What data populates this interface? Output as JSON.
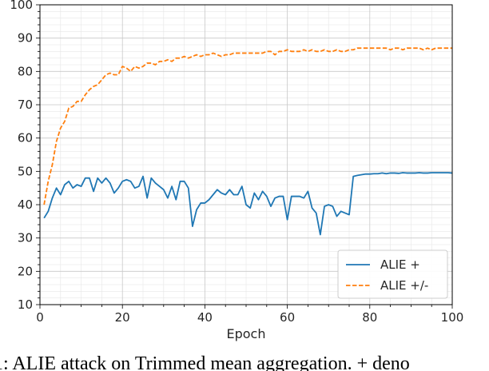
{
  "chart_data": {
    "type": "line",
    "title": "",
    "xlabel": "Epoch",
    "ylabel": "",
    "xlim": [
      0,
      100
    ],
    "ylim": [
      10,
      100
    ],
    "xticks": [
      "0",
      "20",
      "40",
      "60",
      "80",
      "100"
    ],
    "yticks": [
      "10",
      "20",
      "30",
      "40",
      "50",
      "60",
      "70",
      "80",
      "90",
      "100"
    ],
    "grid": "major and minor",
    "legend_position": "lower-right",
    "series": [
      {
        "name": "ALIE +",
        "color": "#1f77b4",
        "style": "solid",
        "x": [
          1,
          2,
          3,
          4,
          5,
          6,
          7,
          8,
          9,
          10,
          11,
          12,
          13,
          14,
          15,
          16,
          17,
          18,
          19,
          20,
          21,
          22,
          23,
          24,
          25,
          26,
          27,
          28,
          29,
          30,
          31,
          32,
          33,
          34,
          35,
          36,
          37,
          38,
          39,
          40,
          41,
          42,
          43,
          44,
          45,
          46,
          47,
          48,
          49,
          50,
          51,
          52,
          53,
          54,
          55,
          56,
          57,
          58,
          59,
          60,
          61,
          62,
          63,
          64,
          65,
          66,
          67,
          68,
          69,
          70,
          71,
          72,
          73,
          74,
          75,
          76,
          77,
          78,
          79,
          80,
          81,
          82,
          83,
          84,
          85,
          86,
          87,
          88,
          89,
          90,
          91,
          92,
          93,
          94,
          95,
          96,
          97,
          98,
          99,
          100
        ],
        "y": [
          36,
          38,
          42,
          45,
          43,
          46,
          47,
          45,
          46,
          45.5,
          48,
          48,
          44,
          48,
          46.5,
          48,
          46.5,
          43.5,
          45,
          47,
          47.5,
          47,
          45,
          45.5,
          48.5,
          42,
          48,
          46.5,
          45.5,
          44.5,
          42,
          45.5,
          41.5,
          47,
          47,
          45,
          33.5,
          38.5,
          40.5,
          40.5,
          41.5,
          43,
          44.5,
          43.5,
          43,
          44.5,
          43,
          43,
          45.5,
          40,
          39,
          43.5,
          41.5,
          44,
          42.5,
          39.5,
          42,
          42.5,
          42.5,
          35.5,
          42.5,
          42.5,
          42.5,
          42,
          44,
          39,
          37.5,
          31,
          39.5,
          40,
          39.5,
          36.5,
          38,
          37.5,
          37,
          48.5,
          48.8,
          49,
          49.2,
          49.2,
          49.3,
          49.3,
          49.5,
          49.3,
          49.5,
          49.5,
          49.4,
          49.6,
          49.5,
          49.5,
          49.5,
          49.6,
          49.5,
          49.5,
          49.6,
          49.6,
          49.6,
          49.6,
          49.6,
          49.5
        ]
      },
      {
        "name": "ALIE +/-",
        "color": "#ff7f0e",
        "style": "dashed",
        "x": [
          1,
          2,
          3,
          4,
          5,
          6,
          7,
          8,
          9,
          10,
          11,
          12,
          13,
          14,
          15,
          16,
          17,
          18,
          19,
          20,
          21,
          22,
          23,
          24,
          25,
          26,
          27,
          28,
          29,
          30,
          31,
          32,
          33,
          34,
          35,
          36,
          37,
          38,
          39,
          40,
          41,
          42,
          43,
          44,
          45,
          46,
          47,
          48,
          49,
          50,
          51,
          52,
          53,
          54,
          55,
          56,
          57,
          58,
          59,
          60,
          61,
          62,
          63,
          64,
          65,
          66,
          67,
          68,
          69,
          70,
          71,
          72,
          73,
          74,
          75,
          76,
          77,
          78,
          79,
          80,
          81,
          82,
          83,
          84,
          85,
          86,
          87,
          88,
          89,
          90,
          91,
          92,
          93,
          94,
          95,
          96,
          97,
          98,
          99,
          100
        ],
        "y": [
          40,
          47,
          52,
          59,
          63,
          65,
          69,
          69.5,
          71,
          71,
          73,
          74.5,
          75.5,
          76,
          77.5,
          79,
          79.5,
          79,
          79,
          81.5,
          81,
          80,
          81.5,
          81,
          81.5,
          82.5,
          82.5,
          82,
          83,
          83,
          83.5,
          83,
          84,
          84,
          84.5,
          84,
          84.5,
          85,
          84.5,
          85,
          85,
          85.5,
          85,
          84.5,
          85,
          85,
          85.5,
          85.5,
          85.5,
          85.5,
          85.5,
          85.5,
          85.5,
          85.5,
          86,
          86,
          85,
          86,
          86,
          86.5,
          86,
          86,
          86,
          86.5,
          86,
          86.5,
          86,
          86,
          86.5,
          86,
          86,
          86.5,
          86,
          86,
          86.5,
          86.5,
          87,
          87,
          87,
          87,
          87,
          87,
          87,
          87,
          86.5,
          87,
          87,
          86.5,
          87,
          87,
          87,
          87,
          86.5,
          87,
          86.5,
          87,
          87,
          87,
          87,
          87
        ]
      }
    ]
  },
  "caption": {
    "text": "1: ALIE attack on Trimmed mean aggregation. + deno"
  }
}
